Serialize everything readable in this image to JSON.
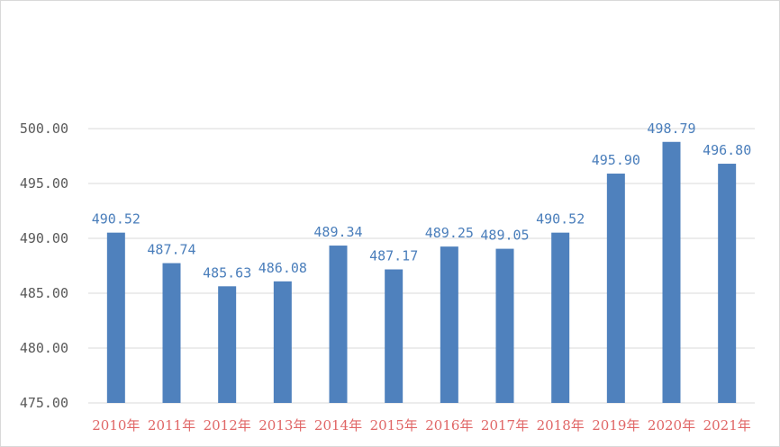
{
  "chart_data": {
    "type": "bar",
    "title": "",
    "xlabel": "",
    "ylabel": "",
    "categories": [
      "2010年",
      "2011年",
      "2012年",
      "2013年",
      "2014年",
      "2015年",
      "2016年",
      "2017年",
      "2018年",
      "2019年",
      "2020年",
      "2021年"
    ],
    "values": [
      490.52,
      487.74,
      485.63,
      486.08,
      489.34,
      487.17,
      489.25,
      489.05,
      490.52,
      495.9,
      498.79,
      496.8
    ],
    "value_labels": [
      "490.52",
      "487.74",
      "485.63",
      "486.08",
      "489.34",
      "487.17",
      "489.25",
      "489.05",
      "490.52",
      "495.90",
      "498.79",
      "496.80"
    ],
    "ylim": [
      475,
      500
    ],
    "yticks": [
      475,
      480,
      485,
      490,
      495,
      500
    ],
    "ytick_labels": [
      "475.00",
      "480.00",
      "485.00",
      "490.00",
      "495.00",
      "500.00"
    ],
    "grid": true,
    "legend": "none",
    "colors": {
      "bar": "#4f81bd",
      "data_label": "#4a7ebb",
      "category_label": "#e06666",
      "tick_label": "#595959",
      "grid": "#d9d9d9"
    }
  }
}
